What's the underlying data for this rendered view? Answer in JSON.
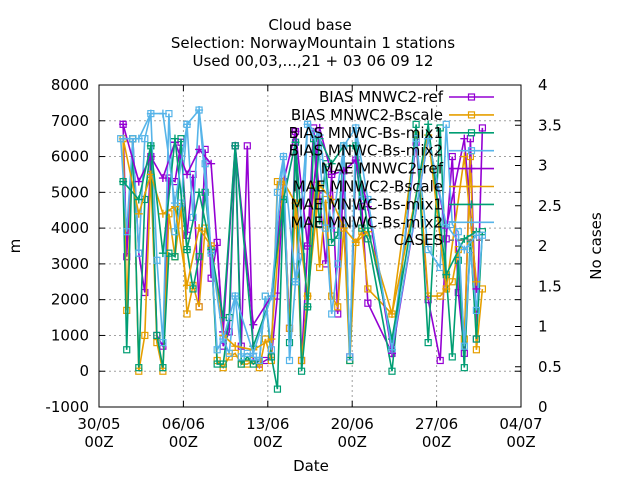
{
  "chart_data": {
    "type": "line",
    "title_lines": [
      "Cloud base",
      "Selection: NorwayMountain      1 stations",
      "Used 00,03,...,21 + 03 06 09 12"
    ],
    "xlabel": "Date",
    "ylabel": "m",
    "y2label": "No cases",
    "xlim": [
      0,
      35
    ],
    "ylim": [
      -1000,
      8000
    ],
    "y2lim": [
      0,
      4
    ],
    "x_ticks": [
      {
        "x": 0,
        "line1": "30/05",
        "line2": "00Z"
      },
      {
        "x": 7,
        "line1": "06/06",
        "line2": "00Z"
      },
      {
        "x": 14,
        "line1": "13/06",
        "line2": "00Z"
      },
      {
        "x": 21,
        "line1": "20/06",
        "line2": "00Z"
      },
      {
        "x": 28,
        "line1": "27/06",
        "line2": "00Z"
      },
      {
        "x": 35,
        "line1": "04/07",
        "line2": "00Z"
      }
    ],
    "y_ticks": [
      "-1000",
      "0",
      "1000",
      "2000",
      "3000",
      "4000",
      "5000",
      "6000",
      "7000",
      "8000"
    ],
    "y2_ticks": [
      "0",
      "0.5",
      "1",
      "1.5",
      "2",
      "2.5",
      "3",
      "3.5",
      "4"
    ],
    "grid": true,
    "legend_position": "top-right",
    "series": [
      {
        "name": "BIAS MNWC2-ref",
        "color": "#9400d3",
        "marker": "square",
        "x": [
          2.0,
          2.3,
          2.8,
          3.3,
          3.8,
          4.3,
          4.8,
          5.3,
          5.8,
          6.3,
          6.8,
          7.3,
          7.8,
          8.3,
          8.8,
          9.3,
          9.8,
          10.3,
          10.8,
          11.3,
          11.8,
          12.3,
          12.8,
          13.3,
          13.8,
          14.3,
          14.8,
          15.3,
          15.8,
          16.3,
          16.8,
          17.3,
          17.8,
          18.3,
          18.8,
          19.3,
          19.8,
          20.3,
          20.8,
          21.3,
          21.8,
          22.3,
          24.3,
          26.3,
          27.3,
          28.3,
          28.8,
          29.3,
          29.8,
          30.3,
          30.8,
          31.3,
          31.8
        ],
        "y": [
          6900,
          3200,
          6500,
          3300,
          2200,
          6000,
          1000,
          700,
          5400,
          5300,
          6400,
          3800,
          5500,
          1800,
          6200,
          2600,
          3600,
          700,
          1100,
          6300,
          700,
          6300,
          300,
          200,
          300,
          400,
          2100,
          5300,
          1200,
          6700,
          300,
          3500,
          6800,
          4900,
          3000,
          5500,
          1600,
          5600,
          400,
          5900,
          4600,
          1900,
          500,
          6400,
          2000,
          300,
          3700,
          6000,
          2200,
          500,
          6500,
          900,
          6800
        ]
      },
      {
        "name": "BIAS MNWC2-Bscale",
        "color": "#e69f00",
        "marker": "square",
        "x": [
          2.0,
          2.3,
          2.8,
          3.3,
          3.8,
          4.3,
          4.8,
          5.3,
          5.8,
          6.3,
          6.8,
          7.3,
          7.8,
          8.3,
          8.8,
          9.3,
          9.8,
          10.3,
          10.8,
          11.3,
          11.8,
          12.3,
          12.8,
          13.3,
          13.8,
          14.3,
          14.8,
          15.3,
          15.8,
          16.3,
          16.8,
          17.3,
          17.8,
          18.3,
          18.8,
          19.3,
          19.8,
          20.3,
          20.8,
          21.3,
          21.8,
          22.3,
          24.3,
          26.3,
          27.3,
          28.3,
          28.8,
          29.3,
          29.8,
          30.3,
          30.8,
          31.3,
          31.8
        ],
        "y": [
          6500,
          1700,
          6500,
          0,
          1000,
          5500,
          800,
          0,
          4400,
          3200,
          4600,
          1600,
          2400,
          1800,
          4000,
          3500,
          300,
          100,
          400,
          500,
          200,
          200,
          300,
          100,
          900,
          300,
          5300,
          5200,
          1200,
          4700,
          300,
          2100,
          5200,
          2900,
          4800,
          2100,
          1800,
          4000,
          300,
          3600,
          3900,
          2300,
          1600,
          6600,
          2100,
          2100,
          2300,
          2500,
          3400,
          900,
          6000,
          600,
          2300
        ]
      },
      {
        "name": "BIAS MNWC-Bs-mix1",
        "color": "#009e73",
        "marker": "square",
        "x": [
          2.0,
          2.3,
          2.8,
          3.3,
          3.8,
          4.3,
          4.8,
          5.3,
          5.8,
          6.3,
          6.8,
          7.3,
          7.8,
          8.3,
          8.8,
          9.3,
          9.8,
          10.3,
          10.8,
          11.3,
          11.8,
          12.3,
          12.8,
          13.3,
          13.8,
          14.3,
          14.8,
          15.3,
          15.8,
          16.3,
          16.8,
          17.3,
          17.8,
          18.3,
          18.8,
          19.3,
          19.8,
          20.3,
          20.8,
          21.3,
          21.8,
          22.3,
          24.3,
          26.3,
          27.3,
          28.3,
          28.8,
          29.3,
          29.8,
          30.3,
          30.8,
          31.3,
          31.8
        ],
        "y": [
          5300,
          600,
          6500,
          100,
          4800,
          6300,
          1000,
          100,
          3300,
          3200,
          6500,
          3400,
          2300,
          3200,
          5000,
          3400,
          200,
          200,
          1500,
          6300,
          200,
          400,
          200,
          300,
          2100,
          400,
          -500,
          4800,
          800,
          6400,
          0,
          1800,
          6500,
          4100,
          5800,
          3600,
          3800,
          6300,
          300,
          6300,
          4000,
          3700,
          0,
          6900,
          800,
          6800,
          2700,
          400,
          3100,
          100,
          3700,
          900,
          3900
        ]
      },
      {
        "name": "BIAS MNWC-Bs-mix2",
        "color": "#56b4e9",
        "marker": "square",
        "x": [
          1.8,
          2.3,
          2.8,
          3.3,
          3.8,
          4.3,
          4.8,
          5.3,
          5.8,
          6.3,
          6.8,
          7.3,
          7.8,
          8.3,
          8.8,
          9.3,
          9.8,
          10.3,
          10.8,
          11.3,
          11.8,
          12.3,
          12.8,
          13.3,
          13.8,
          14.3,
          14.8,
          15.3,
          15.8,
          16.3,
          16.8,
          17.3,
          17.8,
          18.3,
          18.8,
          19.3,
          19.8,
          20.3,
          20.8,
          21.3,
          21.8,
          22.3,
          24.3,
          26.3,
          27.3,
          28.3,
          28.8,
          29.3,
          29.8,
          30.3,
          30.8,
          31.3,
          31.8
        ],
        "y": [
          6500,
          3900,
          6500,
          3300,
          6500,
          7200,
          3100,
          800,
          7200,
          3900,
          4700,
          6900,
          4300,
          7300,
          5800,
          3300,
          600,
          900,
          500,
          2100,
          400,
          500,
          400,
          300,
          2100,
          600,
          5000,
          6000,
          300,
          2500,
          3200,
          6900,
          6600,
          6000,
          4000,
          1600,
          3000,
          6300,
          400,
          6800,
          4800,
          4800,
          600,
          6500,
          3400,
          2900,
          6900,
          4100,
          3900,
          700,
          3400,
          1700,
          3800
        ]
      },
      {
        "name": "MAE MNWC2-ref",
        "color": "#9400d3",
        "marker": "plus",
        "x": [
          2.0,
          3.3,
          4.3,
          5.3,
          6.3,
          7.3,
          8.3,
          9.3,
          10.3,
          11.3,
          12.8,
          14.3,
          15.3,
          16.3,
          17.3,
          18.3,
          19.3,
          20.3,
          21.3,
          22.3,
          24.3,
          27.3,
          28.8,
          30.3,
          31.3
        ],
        "y": [
          6900,
          5300,
          6000,
          5400,
          6400,
          5500,
          6200,
          5800,
          1100,
          6300,
          1300,
          2100,
          5300,
          6700,
          3500,
          6800,
          5500,
          5600,
          5900,
          4600,
          500,
          6500,
          4000,
          6500,
          2300
        ]
      },
      {
        "name": "MAE MNWC2-Bscale",
        "color": "#e69f00",
        "marker": "plus",
        "x": [
          2.0,
          3.3,
          4.3,
          5.3,
          6.3,
          7.3,
          8.3,
          9.3,
          10.3,
          11.3,
          12.8,
          14.3,
          15.3,
          16.3,
          17.3,
          18.3,
          19.3,
          20.3,
          21.3,
          22.3,
          24.3,
          27.3,
          28.8,
          30.3,
          31.3
        ],
        "y": [
          6500,
          4400,
          5500,
          4400,
          4600,
          2400,
          4000,
          3500,
          1000,
          700,
          600,
          900,
          5300,
          4700,
          2100,
          5200,
          4800,
          4000,
          3600,
          3900,
          1600,
          6600,
          2300,
          6000,
          2500
        ]
      },
      {
        "name": "MAE MNWC-Bs-mix1",
        "color": "#009e73",
        "marker": "plus",
        "x": [
          2.0,
          3.3,
          4.3,
          5.3,
          6.3,
          7.3,
          8.3,
          9.3,
          10.3,
          11.3,
          12.8,
          14.3,
          15.3,
          16.3,
          17.3,
          18.3,
          19.3,
          20.3,
          21.3,
          22.3,
          24.3,
          27.3,
          28.8,
          30.3,
          31.3
        ],
        "y": [
          5300,
          4800,
          6300,
          3300,
          6500,
          3400,
          5000,
          3400,
          1500,
          6300,
          700,
          2100,
          4800,
          6400,
          1800,
          6500,
          5800,
          6300,
          6300,
          4000,
          900,
          6900,
          2700,
          3700,
          3900
        ]
      },
      {
        "name": "MAE MNWC-Bs-mix2",
        "color": "#56b4e9",
        "marker": "plus",
        "x": [
          2.0,
          3.3,
          4.3,
          5.3,
          6.3,
          7.3,
          8.3,
          9.3,
          10.3,
          11.3,
          12.8,
          14.3,
          15.3,
          16.3,
          17.3,
          18.3,
          19.3,
          20.3,
          21.3,
          22.3,
          24.3,
          27.3,
          28.8,
          30.3,
          31.3
        ],
        "y": [
          6500,
          6500,
          7200,
          7200,
          4700,
          6900,
          7300,
          3300,
          900,
          2100,
          500,
          2100,
          6000,
          2500,
          6900,
          6600,
          4000,
          6300,
          6800,
          4800,
          600,
          6500,
          4100,
          3400,
          3800
        ]
      },
      {
        "name": "CASES",
        "color": "#808080",
        "marker": "none",
        "x": [],
        "y": []
      }
    ]
  }
}
